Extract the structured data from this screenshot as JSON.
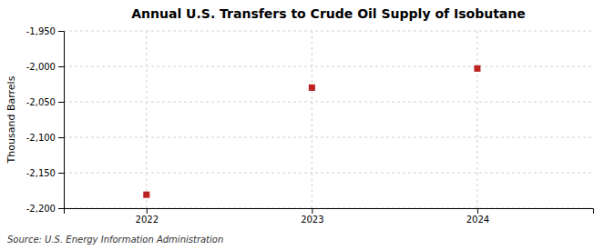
{
  "chart_data": {
    "type": "scatter",
    "title": "Annual U.S. Transfers to Crude Oil Supply of Isobutane",
    "ylabel": "Thousand Barrels",
    "annotation": "Source: U.S. Energy Information Administration",
    "x": [
      2022,
      2023,
      2024
    ],
    "values": [
      -2181,
      -2030,
      -2003
    ],
    "color": "#bb2222",
    "marker": "square",
    "xlim": [
      2021.5,
      2024.7
    ],
    "xticks": [
      2022,
      2023,
      2024
    ],
    "ylim": [
      -2200,
      -1950
    ],
    "yticks": [
      {
        "value": -2200,
        "label": "-2,200"
      },
      {
        "value": -2150,
        "label": "-2,150"
      },
      {
        "value": -2100,
        "label": "-2,100"
      },
      {
        "value": -2050,
        "label": "-2,050"
      },
      {
        "value": -2000,
        "label": "-2,000"
      },
      {
        "value": -1950,
        "label": "-1,950"
      }
    ],
    "grid": true
  }
}
